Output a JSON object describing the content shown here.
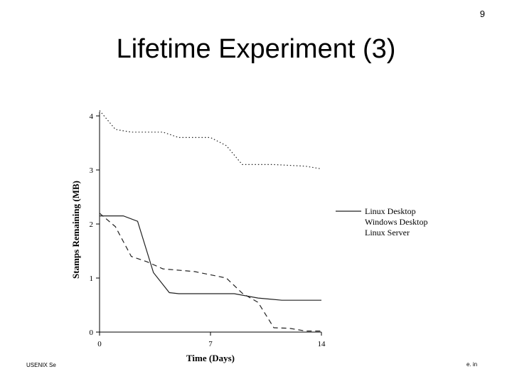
{
  "slide": {
    "number": "9",
    "title": "Lifetime Experiment (3)",
    "footer_left": "USENIX Se",
    "footer_right": "e. in"
  },
  "chart_data": {
    "type": "line",
    "xlabel": "Time (Days)",
    "ylabel": "Stamps Remaining (MB)",
    "xlim": [
      0,
      14
    ],
    "ylim": [
      0,
      4
    ],
    "x_ticks": [
      "0",
      "7",
      "14"
    ],
    "y_ticks": [
      "0",
      "1",
      "2",
      "3",
      "4"
    ],
    "legend_position": "right",
    "series": [
      {
        "name": "Linux Desktop",
        "style": "solid",
        "points": [
          [
            0,
            2.15
          ],
          [
            1.5,
            2.15
          ],
          [
            2.4,
            2.05
          ],
          [
            3.4,
            1.1
          ],
          [
            4.4,
            0.73
          ],
          [
            5,
            0.71
          ],
          [
            8.5,
            0.71
          ],
          [
            10,
            0.63
          ],
          [
            11.5,
            0.59
          ],
          [
            14,
            0.59
          ]
        ]
      },
      {
        "name": "Windows Desktop",
        "style": "dashed",
        "points": [
          [
            0,
            2.2
          ],
          [
            1,
            1.95
          ],
          [
            2,
            1.4
          ],
          [
            3,
            1.3
          ],
          [
            4,
            1.17
          ],
          [
            6,
            1.12
          ],
          [
            8,
            1.0
          ],
          [
            9,
            0.72
          ],
          [
            10,
            0.55
          ],
          [
            11,
            0.08
          ],
          [
            12,
            0.07
          ],
          [
            13,
            0.02
          ],
          [
            14,
            0.02
          ]
        ]
      },
      {
        "name": "Linux Server",
        "style": "dotted",
        "points": [
          [
            0,
            4.1
          ],
          [
            1,
            3.75
          ],
          [
            2,
            3.7
          ],
          [
            4,
            3.7
          ],
          [
            5,
            3.6
          ],
          [
            7,
            3.6
          ],
          [
            8,
            3.45
          ],
          [
            9,
            3.1
          ],
          [
            11,
            3.1
          ],
          [
            13,
            3.07
          ],
          [
            14,
            3.02
          ]
        ]
      }
    ]
  }
}
